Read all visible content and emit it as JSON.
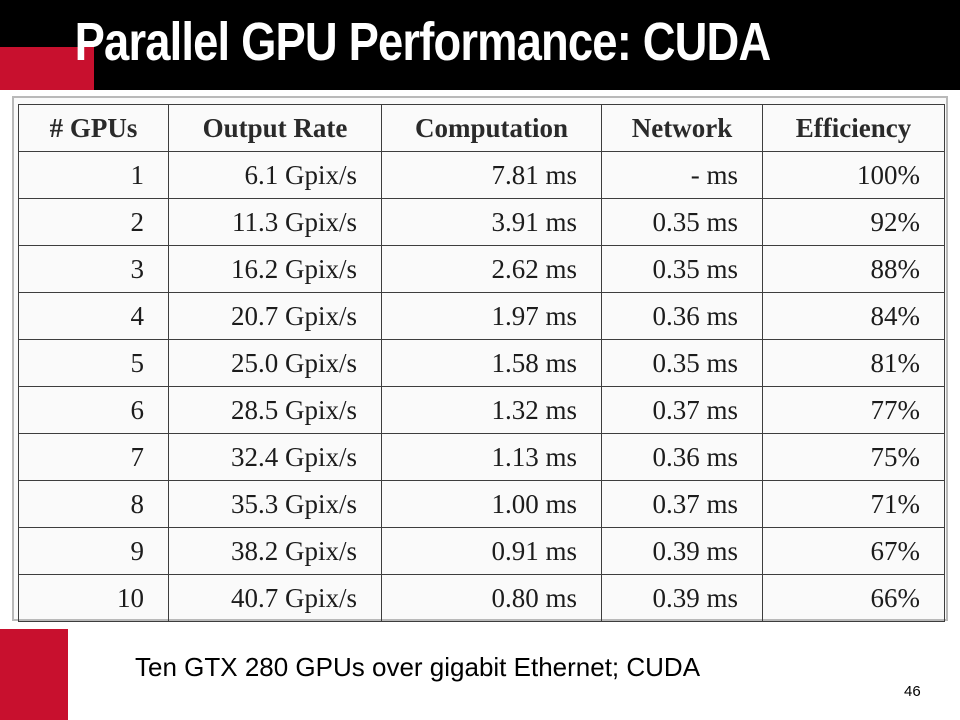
{
  "slide": {
    "title": "Parallel GPU Performance: CUDA",
    "caption": "Ten GTX 280 GPUs over gigabit Ethernet; CUDA",
    "page_number": "46"
  },
  "colors": {
    "header_background": "#000000",
    "accent_red": "#c8102e",
    "title_text": "#ffffff"
  },
  "table": {
    "headers": [
      "# GPUs",
      "Output Rate",
      "Computation",
      "Network",
      "Efficiency"
    ],
    "rows": [
      [
        "1",
        "6.1 Gpix/s",
        "7.81 ms",
        "- ms",
        "100%"
      ],
      [
        "2",
        "11.3 Gpix/s",
        "3.91 ms",
        "0.35 ms",
        "92%"
      ],
      [
        "3",
        "16.2 Gpix/s",
        "2.62 ms",
        "0.35 ms",
        "88%"
      ],
      [
        "4",
        "20.7 Gpix/s",
        "1.97 ms",
        "0.36 ms",
        "84%"
      ],
      [
        "5",
        "25.0 Gpix/s",
        "1.58 ms",
        "0.35 ms",
        "81%"
      ],
      [
        "6",
        "28.5 Gpix/s",
        "1.32 ms",
        "0.37 ms",
        "77%"
      ],
      [
        "7",
        "32.4 Gpix/s",
        "1.13 ms",
        "0.36 ms",
        "75%"
      ],
      [
        "8",
        "35.3 Gpix/s",
        "1.00 ms",
        "0.37 ms",
        "71%"
      ],
      [
        "9",
        "38.2 Gpix/s",
        "0.91 ms",
        "0.39 ms",
        "67%"
      ],
      [
        "10",
        "40.7 Gpix/s",
        "0.80 ms",
        "0.39 ms",
        "66%"
      ]
    ]
  }
}
